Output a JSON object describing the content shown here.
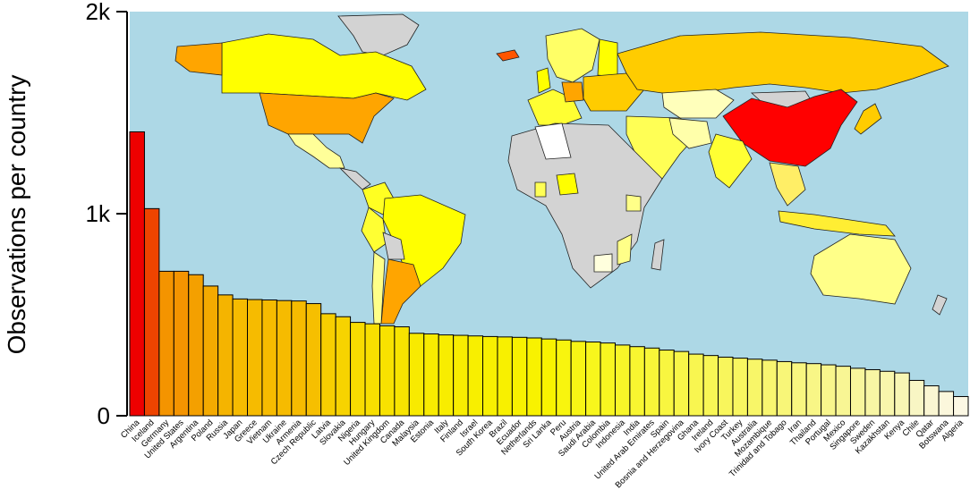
{
  "chart_data": {
    "type": "bar",
    "title": "",
    "xlabel": "",
    "ylabel": "Observations per country",
    "ylim": [
      0,
      2000
    ],
    "yticks": [
      {
        "value": 0,
        "label": "0"
      },
      {
        "value": 1000,
        "label": "1k"
      },
      {
        "value": 2000,
        "label": "2k"
      }
    ],
    "categories": [
      "China",
      "Iceland",
      "Germany",
      "United States",
      "Argentina",
      "Poland",
      "Russia",
      "Japan",
      "Greece",
      "Vietnam",
      "Ukraine",
      "Armenia",
      "Czech Republic",
      "Latvia",
      "Slovakia",
      "Nigeria",
      "Hungary",
      "United Kingdom",
      "Canada",
      "Malaysia",
      "Estonia",
      "Italy",
      "Finland",
      "Israel",
      "South Korea",
      "Brazil",
      "Ecuador",
      "Netherlands",
      "Sri Lanka",
      "Peru",
      "Austria",
      "Saudi Arabia",
      "Colombia",
      "Indonesia",
      "India",
      "United Arab Emirates",
      "Spain",
      "Bosnia and Herzegovina",
      "Ghana",
      "Ireland",
      "Ivory Coast",
      "Turkey",
      "Australia",
      "Mozambique",
      "Trinidad and Tobago",
      "Iran",
      "Thailand",
      "Portugal",
      "Mexico",
      "Singapore",
      "Sweden",
      "Kazakhstan",
      "Kenya",
      "Chile",
      "Qatar",
      "Botswana",
      "Algeria"
    ],
    "values": [
      1405,
      1025,
      715,
      715,
      698,
      642,
      598,
      578,
      575,
      573,
      570,
      568,
      555,
      505,
      490,
      462,
      455,
      445,
      440,
      408,
      405,
      400,
      398,
      395,
      392,
      390,
      388,
      385,
      380,
      375,
      368,
      365,
      360,
      350,
      342,
      335,
      325,
      318,
      305,
      298,
      290,
      285,
      280,
      275,
      268,
      262,
      258,
      252,
      245,
      235,
      228,
      220,
      212,
      175,
      148,
      120,
      95
    ],
    "colors": [
      "#ee0000",
      "#ee4400",
      "#f49400",
      "#f49400",
      "#f4a000",
      "#f4aa00",
      "#f5b400",
      "#f6bb00",
      "#f6bb00",
      "#f6bb00",
      "#f6bb00",
      "#f6bb00",
      "#f6bf00",
      "#f7cf00",
      "#f7d300",
      "#f8dc00",
      "#f8df00",
      "#f8e200",
      "#f8e400",
      "#f8ea00",
      "#f8eb00",
      "#f8ed00",
      "#f8ed00",
      "#f8ef00",
      "#f8f000",
      "#f8f000",
      "#f8f100",
      "#f8f200",
      "#f8f300",
      "#f8f50e",
      "#f8f515",
      "#f8f61c",
      "#f8f620",
      "#f8f628",
      "#f8f630",
      "#f8f638",
      "#f8f640",
      "#f8f648",
      "#f8f650",
      "#f8f655",
      "#f8f65c",
      "#f8f660",
      "#f8f668",
      "#f8f670",
      "#f8f678",
      "#f8f680",
      "#f8f686",
      "#f8f68c",
      "#f8f694",
      "#f8f69c",
      "#f8f6a4",
      "#f8f6ac",
      "#f8f6b4",
      "#f8f6c4",
      "#faf6d2",
      "#fbf7dc",
      "#fcf8e4"
    ],
    "grid": false,
    "legend": "none",
    "inset": "world map colored by observations per country"
  },
  "map_colors": {
    "ocean": "#add8e6",
    "no_data": "#d3d3d3",
    "high": "#ff0000",
    "mid": "#ffa500",
    "low": "#ffff00"
  }
}
